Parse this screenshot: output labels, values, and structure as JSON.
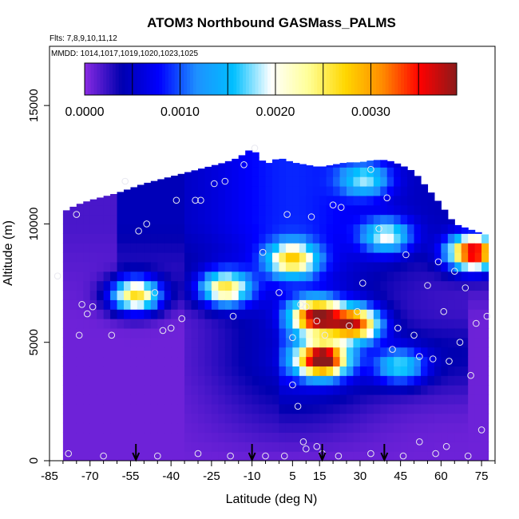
{
  "chart_data": {
    "type": "heatmap",
    "title": "ATOM3 Northbound GASMass_PALMS",
    "subtitle_flights": "Flts: 7,8,9,10,11,12",
    "subtitle_dates": "MMDD: 1014,1017,1019,1020,1023,1025",
    "xlabel": "Latitude (deg N)",
    "ylabel": "Altitude (m)",
    "xlim": [
      -85,
      80
    ],
    "ylim": [
      0,
      17500
    ],
    "x_ticks": [
      -85,
      -70,
      -55,
      -40,
      -25,
      -10,
      5,
      15,
      30,
      45,
      60,
      75
    ],
    "x_tick_labels": [
      "-85",
      "-70",
      "-55",
      "-40",
      "-25",
      "-10",
      "5",
      "15",
      "30",
      "45",
      "60",
      "75"
    ],
    "x_minor_ticks": [
      -80,
      -75,
      -65,
      -60,
      -50,
      -45,
      -35,
      -30,
      -20,
      -15,
      -5,
      0,
      10,
      20,
      25,
      35,
      40,
      50,
      55,
      65,
      70,
      80
    ],
    "y_ticks": [
      0,
      5000,
      10000,
      15000
    ],
    "y_tick_labels": [
      "0",
      "5000",
      "10000",
      "15000"
    ],
    "colorbar": {
      "min": 0.0,
      "max": 0.0039,
      "tick_values": [
        0.0,
        0.001,
        0.002,
        0.003
      ],
      "tick_labels": [
        "0.0000",
        "0.0010",
        "0.0020",
        "0.0030"
      ],
      "separator_values": [
        0.0005,
        0.001,
        0.0015,
        0.002,
        0.0025,
        0.003,
        0.0035
      ],
      "colors": [
        "#8a2be2",
        "#0000b0",
        "#0000ff",
        "#1e90ff",
        "#00bfff",
        "#ffffff",
        "#ffff99",
        "#ffd700",
        "#ff8c00",
        "#ff0000",
        "#8b1a1a"
      ]
    },
    "arrows_latitude": [
      -53,
      -10,
      16,
      39
    ],
    "domain_boundary": {
      "lat": [
        -80,
        -75,
        -70,
        -60,
        -50,
        -40,
        -30,
        -20,
        -15,
        -10,
        -5,
        0,
        5,
        10,
        15,
        20,
        25,
        30,
        35,
        40,
        45,
        50,
        55,
        60,
        65,
        70,
        75,
        78
      ],
      "alt_max": [
        10500,
        10800,
        11000,
        11300,
        11700,
        12000,
        12300,
        12600,
        12800,
        13200,
        12500,
        12800,
        12600,
        12500,
        12400,
        12500,
        12600,
        12600,
        12700,
        12700,
        12500,
        12200,
        11500,
        10800,
        10000,
        9800,
        9600,
        9500
      ]
    },
    "hotspots": [
      {
        "lat": 16,
        "alt": 4300,
        "value": 0.0036
      },
      {
        "lat": 14,
        "alt": 6100,
        "value": 0.0033
      },
      {
        "lat": 28,
        "alt": 5800,
        "value": 0.003
      },
      {
        "lat": 72,
        "alt": 8800,
        "value": 0.0035
      },
      {
        "lat": -53,
        "alt": 7000,
        "value": 0.0025
      },
      {
        "lat": -20,
        "alt": 7300,
        "value": 0.0022
      },
      {
        "lat": 5,
        "alt": 8500,
        "value": 0.0021
      },
      {
        "lat": 32,
        "alt": 11900,
        "value": 0.0012
      },
      {
        "lat": 40,
        "alt": 9500,
        "value": 0.0015
      },
      {
        "lat": 45,
        "alt": 4000,
        "value": 0.0013
      }
    ],
    "sample_points": [
      {
        "lat": -82,
        "alt": 7800
      },
      {
        "lat": -75,
        "alt": 10400
      },
      {
        "lat": -73,
        "alt": 6600
      },
      {
        "lat": -71,
        "alt": 6200
      },
      {
        "lat": -69,
        "alt": 6500
      },
      {
        "lat": -74,
        "alt": 5300
      },
      {
        "lat": -62,
        "alt": 5300
      },
      {
        "lat": -57,
        "alt": 11800
      },
      {
        "lat": -52,
        "alt": 9700
      },
      {
        "lat": -49,
        "alt": 10000
      },
      {
        "lat": -46,
        "alt": 7100
      },
      {
        "lat": -43,
        "alt": 5500
      },
      {
        "lat": -40,
        "alt": 5600
      },
      {
        "lat": -38,
        "alt": 11000
      },
      {
        "lat": -36,
        "alt": 6000
      },
      {
        "lat": -31,
        "alt": 11000
      },
      {
        "lat": -29,
        "alt": 11000
      },
      {
        "lat": -24,
        "alt": 11700
      },
      {
        "lat": -20,
        "alt": 11800
      },
      {
        "lat": -17,
        "alt": 6100
      },
      {
        "lat": -13,
        "alt": 12500
      },
      {
        "lat": -9,
        "alt": 13200
      },
      {
        "lat": -6,
        "alt": 8800
      },
      {
        "lat": 0,
        "alt": 7100
      },
      {
        "lat": 3,
        "alt": 10400
      },
      {
        "lat": 5,
        "alt": 5200
      },
      {
        "lat": 8,
        "alt": 6600
      },
      {
        "lat": 10,
        "alt": 6500
      },
      {
        "lat": 12,
        "alt": 10300
      },
      {
        "lat": 14,
        "alt": 5900
      },
      {
        "lat": 17,
        "alt": 5300
      },
      {
        "lat": 20,
        "alt": 10800
      },
      {
        "lat": 23,
        "alt": 10700
      },
      {
        "lat": 26,
        "alt": 5700
      },
      {
        "lat": 29,
        "alt": 6300
      },
      {
        "lat": 31,
        "alt": 7500
      },
      {
        "lat": 34,
        "alt": 12300
      },
      {
        "lat": 37,
        "alt": 9800
      },
      {
        "lat": 40,
        "alt": 11100
      },
      {
        "lat": 42,
        "alt": 4700
      },
      {
        "lat": 44,
        "alt": 5600
      },
      {
        "lat": 47,
        "alt": 8700
      },
      {
        "lat": 50,
        "alt": 5300
      },
      {
        "lat": 52,
        "alt": 4400
      },
      {
        "lat": 55,
        "alt": 7400
      },
      {
        "lat": 57,
        "alt": 4300
      },
      {
        "lat": 59,
        "alt": 8400
      },
      {
        "lat": 61,
        "alt": 6300
      },
      {
        "lat": 63,
        "alt": 4200
      },
      {
        "lat": 65,
        "alt": 8000
      },
      {
        "lat": 67,
        "alt": 5000
      },
      {
        "lat": 69,
        "alt": 7300
      },
      {
        "lat": 71,
        "alt": 3600
      },
      {
        "lat": 73,
        "alt": 5800
      },
      {
        "lat": 75,
        "alt": 1300
      },
      {
        "lat": 77,
        "alt": 6100
      },
      {
        "lat": 7,
        "alt": 2300
      },
      {
        "lat": 5,
        "alt": 3200
      },
      {
        "lat": 9,
        "alt": 800
      },
      {
        "lat": 10,
        "alt": 500
      },
      {
        "lat": 14,
        "alt": 600
      },
      {
        "lat": 16,
        "alt": 300
      },
      {
        "lat": -78,
        "alt": 300
      },
      {
        "lat": -65,
        "alt": 200
      },
      {
        "lat": -45,
        "alt": 200
      },
      {
        "lat": -30,
        "alt": 300
      },
      {
        "lat": -18,
        "alt": 200
      },
      {
        "lat": -5,
        "alt": 200
      },
      {
        "lat": 2,
        "alt": 200
      },
      {
        "lat": 22,
        "alt": 200
      },
      {
        "lat": 34,
        "alt": 300
      },
      {
        "lat": 46,
        "alt": 200
      },
      {
        "lat": 52,
        "alt": 800
      },
      {
        "lat": 58,
        "alt": 300
      },
      {
        "lat": 62,
        "alt": 600
      },
      {
        "lat": 70,
        "alt": 200
      }
    ]
  }
}
